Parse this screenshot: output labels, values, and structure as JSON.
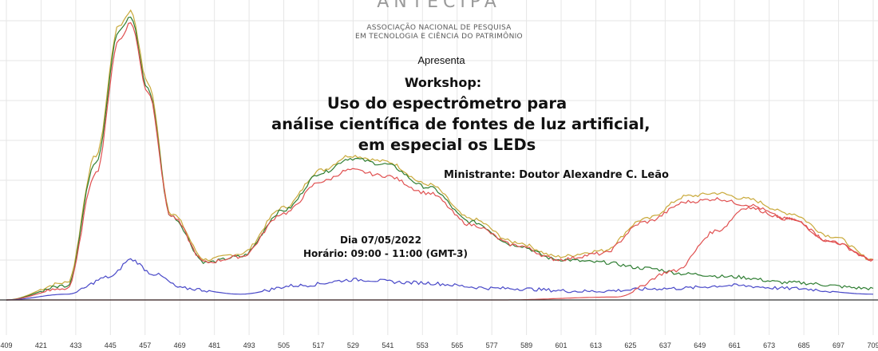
{
  "logo": {
    "text": "ANTECIPA"
  },
  "organization": {
    "line1": "ASSOCIAÇÃO NACIONAL DE PESQUISA",
    "line2": "EM TECNOLOGIA E CIÊNCIA DO PATRIMÔNIO"
  },
  "event": {
    "presents": "Apresenta",
    "type": "Workshop:",
    "title_line1": "Uso do espectrômetro para",
    "title_line2": "análise científica de fontes de luz artificial,",
    "title_line3": "em especial os LEDs",
    "instructor": "Ministrante: Doutor Alexandre C. Leão",
    "date": "Dia 07/05/2022",
    "time": "Horário: 09:00 - 11:00 (GMT-3)"
  },
  "chart_data": {
    "type": "line",
    "x_ticks": [
      "409",
      "421",
      "433",
      "445",
      "457",
      "469",
      "481",
      "493",
      "505",
      "517",
      "529",
      "541",
      "553",
      "565",
      "577",
      "589",
      "601",
      "613",
      "625",
      "637",
      "649",
      "661",
      "673",
      "685",
      "697",
      "709"
    ],
    "xlim": [
      409,
      709
    ],
    "grid": true,
    "series": [
      {
        "color": "#c9a93a",
        "points": [
          [
            409,
            0
          ],
          [
            430,
            6
          ],
          [
            440,
            50
          ],
          [
            448,
            95
          ],
          [
            452,
            100
          ],
          [
            458,
            75
          ],
          [
            466,
            30
          ],
          [
            478,
            14
          ],
          [
            490,
            16
          ],
          [
            505,
            32
          ],
          [
            518,
            45
          ],
          [
            528,
            50
          ],
          [
            540,
            48
          ],
          [
            555,
            40
          ],
          [
            570,
            28
          ],
          [
            585,
            20
          ],
          [
            600,
            15
          ],
          [
            615,
            17
          ],
          [
            630,
            28
          ],
          [
            645,
            36
          ],
          [
            655,
            37
          ],
          [
            665,
            35
          ],
          [
            680,
            30
          ],
          [
            695,
            22
          ],
          [
            709,
            14
          ]
        ]
      },
      {
        "color": "#2e7d32",
        "points": [
          [
            409,
            0
          ],
          [
            430,
            5
          ],
          [
            440,
            48
          ],
          [
            448,
            93
          ],
          [
            452,
            98
          ],
          [
            458,
            73
          ],
          [
            466,
            29
          ],
          [
            478,
            13
          ],
          [
            490,
            15
          ],
          [
            505,
            31
          ],
          [
            518,
            44
          ],
          [
            528,
            49
          ],
          [
            540,
            47
          ],
          [
            555,
            39
          ],
          [
            570,
            27
          ],
          [
            585,
            19
          ],
          [
            600,
            14
          ],
          [
            615,
            13
          ],
          [
            630,
            11
          ],
          [
            645,
            9
          ],
          [
            660,
            8
          ],
          [
            680,
            6
          ],
          [
            709,
            4
          ]
        ]
      },
      {
        "color": "#e05050",
        "points": [
          [
            409,
            0
          ],
          [
            430,
            4
          ],
          [
            440,
            44
          ],
          [
            448,
            90
          ],
          [
            452,
            96
          ],
          [
            458,
            72
          ],
          [
            466,
            29
          ],
          [
            478,
            13
          ],
          [
            490,
            15
          ],
          [
            505,
            30
          ],
          [
            518,
            41
          ],
          [
            528,
            45
          ],
          [
            540,
            43
          ],
          [
            555,
            37
          ],
          [
            570,
            26
          ],
          [
            585,
            19
          ],
          [
            600,
            14
          ],
          [
            615,
            16
          ],
          [
            630,
            27
          ],
          [
            645,
            34
          ],
          [
            655,
            35
          ],
          [
            665,
            33
          ],
          [
            680,
            28
          ],
          [
            695,
            20
          ],
          [
            709,
            14
          ]
        ]
      },
      {
        "color": "#4848c8",
        "points": [
          [
            409,
            0
          ],
          [
            430,
            2
          ],
          [
            445,
            8
          ],
          [
            452,
            14
          ],
          [
            460,
            9
          ],
          [
            470,
            4
          ],
          [
            490,
            2
          ],
          [
            510,
            5
          ],
          [
            530,
            7
          ],
          [
            550,
            6
          ],
          [
            580,
            4
          ],
          [
            610,
            3
          ],
          [
            640,
            4
          ],
          [
            660,
            5
          ],
          [
            680,
            4
          ],
          [
            709,
            2
          ]
        ]
      },
      {
        "color": "#e05050",
        "points": [
          [
            409,
            0
          ],
          [
            500,
            0
          ],
          [
            580,
            0
          ],
          [
            620,
            1
          ],
          [
            640,
            10
          ],
          [
            655,
            24
          ],
          [
            665,
            32
          ],
          [
            680,
            28
          ],
          [
            695,
            20
          ],
          [
            709,
            14
          ]
        ]
      }
    ]
  }
}
